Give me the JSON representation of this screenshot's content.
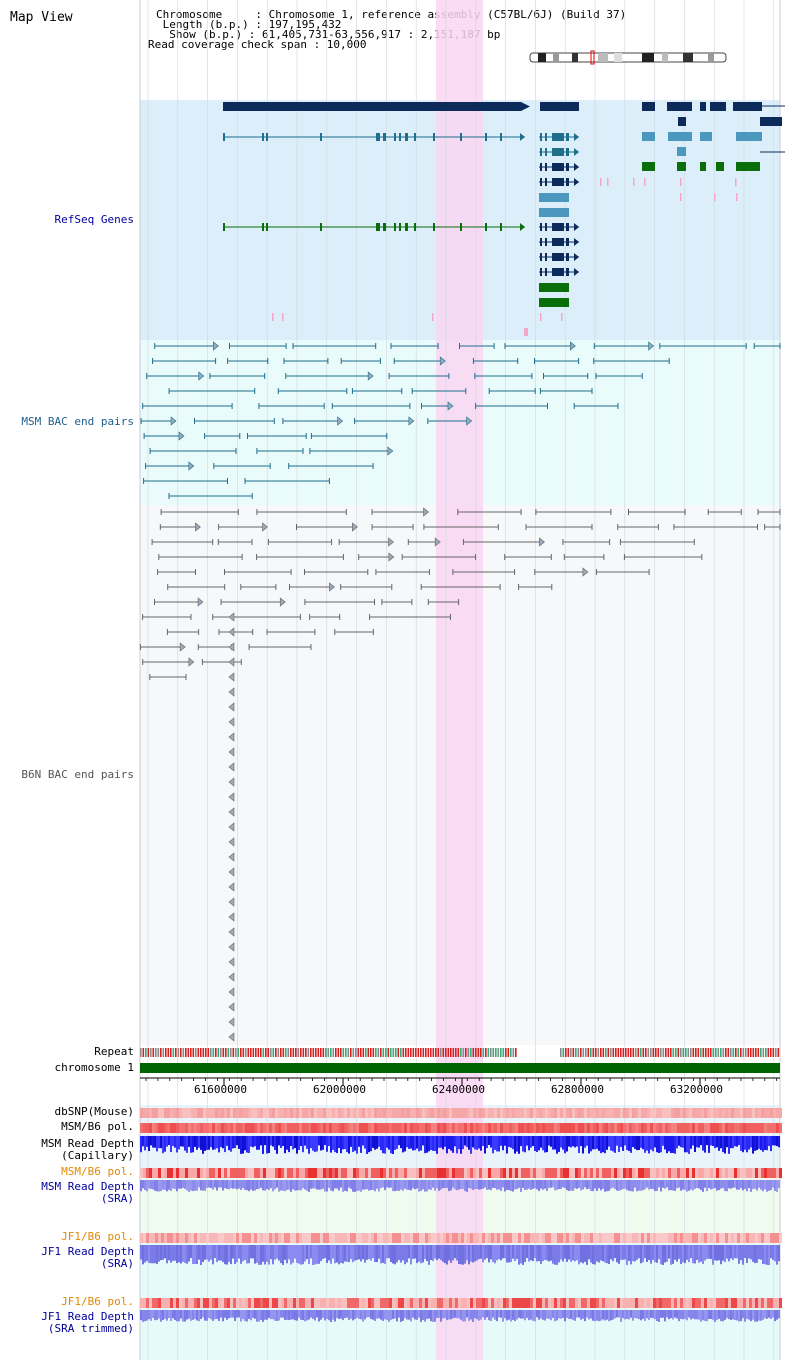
{
  "header": {
    "title": "Map View",
    "chromosome_line": "Chromosome     : Chromosome 1, reference assembly (C57BL/6J) (Build 37)",
    "length_line": " Length (b.p.) : 197,195,432",
    "show_line": "  Show (b.p.) : 61,405,731-63,556,917 : 2,151,187 bp",
    "coverage_line": "Read coverage check span : 10,000"
  },
  "tracks": {
    "refseq": "RefSeq Genes",
    "msm_bac": "MSM BAC end pairs",
    "b6n_bac": "B6N BAC end pairs",
    "repeat": "Repeat",
    "chromosome": "chromosome 1",
    "dbsnp": "dbSNP(Mouse)",
    "msm_b6_pol_1": "MSM/B6 pol.",
    "msm_read_depth_cap_1": "MSM Read Depth",
    "msm_read_depth_cap_2": "(Capillary)",
    "msm_b6_pol_2": "MSM/B6 pol.",
    "msm_read_depth_sra_1": "MSM Read Depth",
    "msm_read_depth_sra_2": "(SRA)",
    "jf1_b6_pol_1": "JF1/B6 pol.",
    "jf1_read_depth_1": "JF1 Read Depth",
    "jf1_read_depth_2": "(SRA)",
    "jf1_b6_pol_2": "JF1/B6 pol.",
    "jf1_read_depth_trim_1": "JF1 Read Depth",
    "jf1_read_depth_trim_2": "(SRA trimmed)"
  },
  "axis": {
    "ticks": [
      "61600000",
      "62000000",
      "62400000",
      "62800000",
      "63200000"
    ]
  },
  "colors": {
    "refseq_bg": "#dbeefa",
    "msm_bg": "#eafbfb",
    "b6n_bg": "#f6f8fa",
    "highlight": "#f9d6f2",
    "gene_dark": "#0c2a5a",
    "gene_teal": "#1e6e8c",
    "gene_light": "#4b97bd",
    "gene_green": "#0a6e0a",
    "chromosome_bar": "#006400",
    "label_blue": "#000099",
    "label_orange": "#e08a00",
    "label_msm": "#1e5f8c",
    "label_b6n": "#555555"
  }
}
